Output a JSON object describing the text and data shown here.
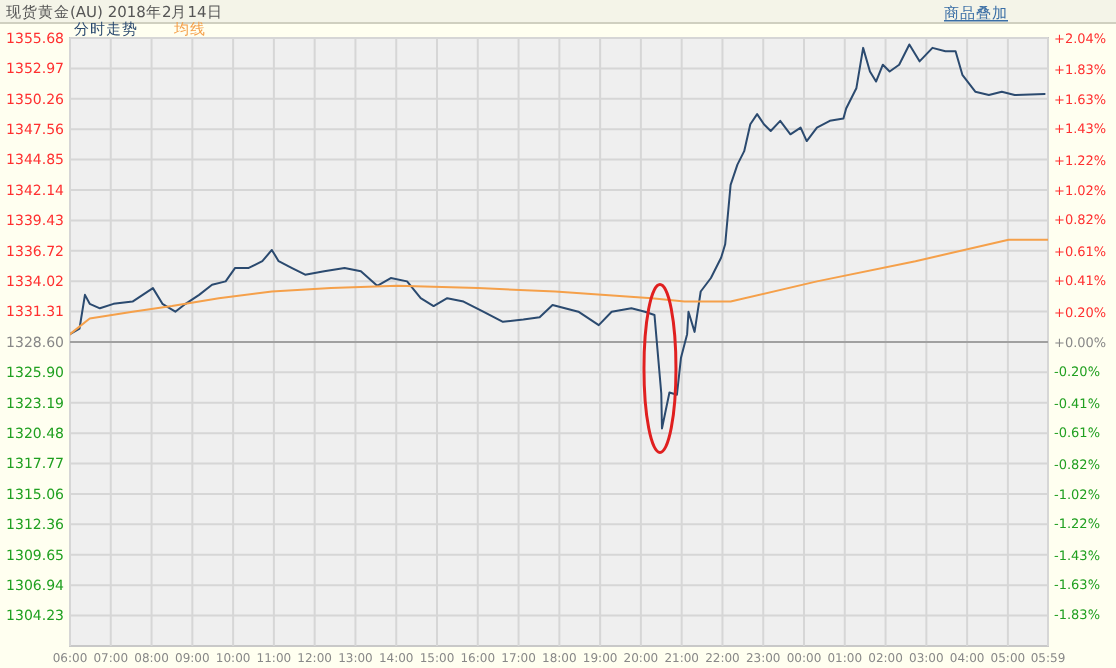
{
  "chart_data": {
    "type": "line",
    "title": "现货黄金(AU) 2018年2月14日",
    "annotations": [
      "商品叠加"
    ],
    "legend": "top left",
    "grid": true,
    "xlim": [
      "2018-02-14T06:00",
      "2018-02-15T05:59"
    ],
    "xticks": [
      {
        "value": "2018-02-14T06:00",
        "label": "06:00"
      },
      {
        "value": "2018-02-14T07:00",
        "label": "07:00"
      },
      {
        "value": "2018-02-14T08:00",
        "label": "08:00"
      },
      {
        "value": "2018-02-14T09:00",
        "label": "09:00"
      },
      {
        "value": "2018-02-14T10:00",
        "label": "10:00"
      },
      {
        "value": "2018-02-14T11:00",
        "label": "11:00"
      },
      {
        "value": "2018-02-14T12:00",
        "label": "12:00"
      },
      {
        "value": "2018-02-14T13:00",
        "label": "13:00"
      },
      {
        "value": "2018-02-14T14:00",
        "label": "14:00"
      },
      {
        "value": "2018-02-14T15:00",
        "label": "15:00"
      },
      {
        "value": "2018-02-14T16:00",
        "label": "16:00"
      },
      {
        "value": "2018-02-14T17:00",
        "label": "17:00"
      },
      {
        "value": "2018-02-14T18:00",
        "label": "18:00"
      },
      {
        "value": "2018-02-14T19:00",
        "label": "19:00"
      },
      {
        "value": "2018-02-14T20:00",
        "label": "20:00"
      },
      {
        "value": "2018-02-14T21:00",
        "label": "21:00"
      },
      {
        "value": "2018-02-14T22:00",
        "label": "22:00"
      },
      {
        "value": "2018-02-14T23:00",
        "label": "23:00"
      },
      {
        "value": "2018-02-15T00:00",
        "label": "00:00"
      },
      {
        "value": "2018-02-15T01:00",
        "label": "01:00"
      },
      {
        "value": "2018-02-15T02:00",
        "label": "02:00"
      },
      {
        "value": "2018-02-15T03:00",
        "label": "03:00"
      },
      {
        "value": "2018-02-15T04:00",
        "label": "04:00"
      },
      {
        "value": "2018-02-15T05:00",
        "label": "05:00"
      },
      {
        "value": "2018-02-15T05:59",
        "label": "05:59"
      }
    ],
    "ylim": [
      1301.52,
      1355.68
    ],
    "yticks": [
      1304.23,
      1306.94,
      1309.65,
      1312.36,
      1315.06,
      1317.77,
      1320.48,
      1323.19,
      {
        "value": 1325.9,
        "label": "1325.90"
      },
      {
        "value": 1328.6,
        "label": "1328.60"
      },
      1331.31,
      1334.02,
      1336.72,
      1339.43,
      1342.14,
      1344.85,
      1347.56,
      1350.26,
      1352.97,
      1355.68
    ],
    "y2lim": [
      -2.04,
      2.04
    ],
    "y2ticks": [
      {
        "value": -1.83,
        "label": "-1.83%"
      },
      {
        "value": -1.63,
        "label": "-1.63%"
      },
      {
        "value": -1.43,
        "label": "-1.43%"
      },
      {
        "value": -1.22,
        "label": "-1.22%"
      },
      {
        "value": -1.02,
        "label": "-1.02%"
      },
      {
        "value": -0.82,
        "label": "-0.82%"
      },
      {
        "value": -0.61,
        "label": "-0.61%"
      },
      {
        "value": -0.41,
        "label": "-0.41%"
      },
      {
        "value": -0.2,
        "label": "-0.20%"
      },
      {
        "value": 0,
        "label": "+0.00%"
      },
      {
        "value": 0.2,
        "label": "+0.20%"
      },
      {
        "value": 0.41,
        "label": "+0.41%"
      },
      {
        "value": 0.61,
        "label": "+0.61%"
      },
      {
        "value": 0.82,
        "label": "+0.82%"
      },
      {
        "value": 1.02,
        "label": "+1.02%"
      },
      {
        "value": 1.22,
        "label": "+1.22%"
      },
      {
        "value": 1.43,
        "label": "+1.43%"
      },
      {
        "value": 1.63,
        "label": "+1.63%"
      },
      {
        "value": 1.83,
        "label": "+1.83%"
      },
      {
        "value": 2.04,
        "label": "+2.04%"
      }
    ],
    "ref_lines": [
      {
        "axis": "y",
        "value": 1328.6,
        "color": "#a0a0a0"
      }
    ],
    "series": [
      {
        "name": "分时走势",
        "color": "#2b4a6f",
        "x": [
          "2018-02-14T06:00",
          "2018-02-14T06:14",
          "2018-02-14T06:22",
          "2018-02-14T06:29",
          "2018-02-14T06:44",
          "2018-02-14T07:04",
          "2018-02-14T07:32",
          "2018-02-14T08:02",
          "2018-02-14T08:16",
          "2018-02-14T08:35",
          "2018-02-14T08:50",
          "2018-02-14T09:10",
          "2018-02-14T09:29",
          "2018-02-14T09:49",
          "2018-02-14T10:03",
          "2018-02-14T10:23",
          "2018-02-14T10:43",
          "2018-02-14T10:57",
          "2018-02-14T11:07",
          "2018-02-14T11:26",
          "2018-02-14T11:46",
          "2018-02-14T12:14",
          "2018-02-14T12:44",
          "2018-02-14T13:08",
          "2018-02-14T13:32",
          "2018-02-14T13:52",
          "2018-02-14T14:16",
          "2018-02-14T14:36",
          "2018-02-14T14:55",
          "2018-02-14T15:15",
          "2018-02-14T15:39",
          "2018-02-14T16:08",
          "2018-02-14T16:37",
          "2018-02-14T17:07",
          "2018-02-14T17:31",
          "2018-02-14T17:50",
          "2018-02-14T18:28",
          "2018-02-14T18:58",
          "2018-02-14T19:17",
          "2018-02-14T19:46",
          "2018-02-14T20:06",
          "2018-02-14T20:20",
          "2018-02-14T20:30",
          "2018-02-14T20:31",
          "2018-02-14T20:42",
          "2018-02-14T20:53",
          "2018-02-14T20:59",
          "2018-02-14T21:08",
          "2018-02-14T21:10",
          "2018-02-14T21:19",
          "2018-02-14T21:28",
          "2018-02-14T21:43",
          "2018-02-14T21:58",
          "2018-02-14T22:04",
          "2018-02-14T22:12",
          "2018-02-14T22:22",
          "2018-02-14T22:32",
          "2018-02-14T22:41",
          "2018-02-14T22:51",
          "2018-02-14T23:01",
          "2018-02-14T23:11",
          "2018-02-14T23:25",
          "2018-02-14T23:40",
          "2018-02-14T23:55",
          "2018-02-15T00:04",
          "2018-02-15T00:19",
          "2018-02-15T00:38",
          "2018-02-15T00:58",
          "2018-02-15T01:02",
          "2018-02-15T01:17",
          "2018-02-15T01:27",
          "2018-02-15T01:37",
          "2018-02-15T01:46",
          "2018-02-15T01:56",
          "2018-02-15T02:06",
          "2018-02-15T02:20",
          "2018-02-15T02:35",
          "2018-02-15T02:50",
          "2018-02-15T03:09",
          "2018-02-15T03:28",
          "2018-02-15T03:43",
          "2018-02-15T03:53",
          "2018-02-15T04:12",
          "2018-02-15T04:32",
          "2018-02-15T04:51",
          "2018-02-15T05:10",
          "2018-02-15T05:54"
        ],
        "values": [
          1329.3,
          1329.8,
          1332.8,
          1332,
          1331.6,
          1332,
          1332.2,
          1333.4,
          1332,
          1331.3,
          1332,
          1332.8,
          1333.7,
          1334,
          1335.2,
          1335.2,
          1335.8,
          1336.8,
          1335.8,
          1335.2,
          1334.6,
          1334.9,
          1335.2,
          1334.9,
          1333.6,
          1334.3,
          1334,
          1332.5,
          1331.8,
          1332.5,
          1332.2,
          1331.3,
          1330.4,
          1330.6,
          1330.8,
          1331.9,
          1331.3,
          1330.1,
          1331.3,
          1331.6,
          1331.3,
          1331,
          1324,
          1320.9,
          1324.1,
          1323.9,
          1327.2,
          1329.3,
          1331.3,
          1329.5,
          1333.1,
          1334.3,
          1336.1,
          1337.3,
          1342.6,
          1344.4,
          1345.6,
          1348,
          1348.9,
          1348,
          1347.4,
          1348.3,
          1347.1,
          1347.7,
          1346.5,
          1347.7,
          1348.3,
          1348.5,
          1349.4,
          1351.2,
          1354.8,
          1352.7,
          1351.8,
          1353.3,
          1352.7,
          1353.3,
          1355.1,
          1353.6,
          1354.8,
          1354.5,
          1354.5,
          1352.4,
          1350.9,
          1350.6,
          1350.9,
          1350.6,
          1350.7
        ]
      },
      {
        "name": "均线",
        "color": "#f5a04a",
        "x": [
          "2018-02-14T06:00",
          "2018-02-14T06:29",
          "2018-02-14T07:32",
          "2018-02-14T08:30",
          "2018-02-14T09:39",
          "2018-02-14T10:57",
          "2018-02-14T12:24",
          "2018-02-14T14:02",
          "2018-02-14T16:00",
          "2018-02-14T17:54",
          "2018-02-14T20:16",
          "2018-02-14T21:04",
          "2018-02-14T22:12",
          "2018-02-15T00:19",
          "2018-02-15T02:44",
          "2018-02-15T05:01",
          "2018-02-15T05:59"
        ],
        "values": [
          1329.3,
          1330.7,
          1331.3,
          1331.8,
          1332.5,
          1333.1,
          1333.4,
          1333.6,
          1333.4,
          1333.1,
          1332.5,
          1332.2,
          1332.2,
          1334,
          1335.8,
          1337.7,
          1337.7
        ]
      }
    ]
  }
}
